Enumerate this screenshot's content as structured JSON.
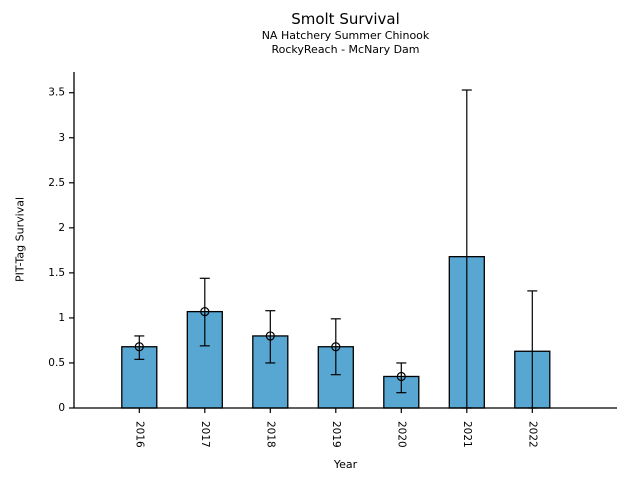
{
  "figure": {
    "title": "Smolt Survival",
    "subtitle1": "NA Hatchery Summer Chinook",
    "subtitle2": "RockyReach - McNary Dam"
  },
  "chart_data": {
    "type": "bar",
    "title": "Smolt Survival",
    "subtitle": [
      "NA Hatchery Summer Chinook",
      "RockyReach - McNary Dam"
    ],
    "xlabel": "Year",
    "ylabel": "PIT-Tag Survival",
    "categories": [
      "2016",
      "2017",
      "2018",
      "2019",
      "2020",
      "2021",
      "2022"
    ],
    "series": [
      {
        "name": "PIT-Tag Survival",
        "values": [
          0.68,
          1.07,
          0.8,
          0.68,
          0.35,
          1.68,
          0.63
        ],
        "error_low": [
          0.54,
          0.69,
          0.5,
          0.37,
          0.17,
          0.0,
          0.0
        ],
        "error_high": [
          0.8,
          1.44,
          1.08,
          0.99,
          0.5,
          3.53,
          1.3
        ],
        "point_marker": [
          true,
          true,
          true,
          true,
          true,
          false,
          false
        ]
      }
    ],
    "ylim": [
      0,
      3.73
    ],
    "yticks": [
      0,
      0.5,
      1,
      1.5,
      2,
      2.5,
      3,
      3.5
    ],
    "ytick_labels": [
      "0",
      "0.5",
      "1",
      "1.5",
      "2",
      "2.5",
      "3",
      "3.5"
    ],
    "bar_color": "#57A7D2",
    "bar_edge_color": "#000000",
    "errorbar_color": "#000000",
    "grid": false,
    "legend_position": "none"
  }
}
